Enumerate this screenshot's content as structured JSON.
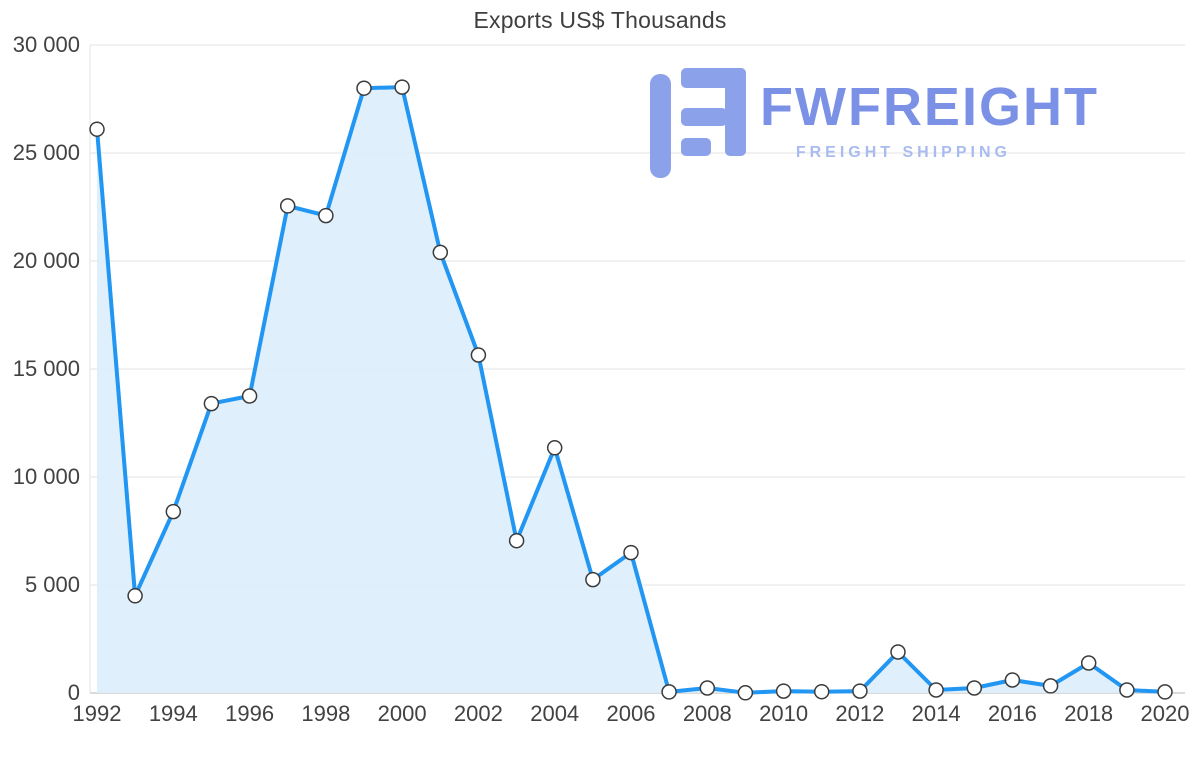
{
  "title": "Exports US$ Thousands",
  "logo": {
    "brand": "FWFREIGHT",
    "tagline": "FREIGHT SHIPPING",
    "icon_color": "#8ba1ea",
    "brand_color": "#7b91e6",
    "tagline_color": "#a9bbf0"
  },
  "chart_data": {
    "type": "area",
    "title": "Exports US$ Thousands",
    "xlabel": "",
    "ylabel": "",
    "x": [
      1992,
      1993,
      1994,
      1995,
      1996,
      1997,
      1998,
      1999,
      2000,
      2001,
      2002,
      2003,
      2004,
      2005,
      2006,
      2007,
      2008,
      2009,
      2010,
      2011,
      2012,
      2013,
      2014,
      2015,
      2016,
      2017,
      2018,
      2019,
      2020
    ],
    "series": [
      {
        "name": "Exports US$ Thousands",
        "values": [
          26100,
          4500,
          8400,
          13400,
          13750,
          22550,
          22100,
          28000,
          28050,
          20400,
          15650,
          7050,
          11350,
          5250,
          6500,
          50,
          230,
          10,
          90,
          60,
          90,
          1900,
          140,
          230,
          600,
          330,
          1390,
          140,
          50
        ]
      }
    ],
    "ylim": [
      0,
      30000
    ],
    "xlim": [
      1992,
      2020
    ],
    "yticks": [
      0,
      5000,
      10000,
      15000,
      20000,
      25000,
      30000
    ],
    "ytick_labels": [
      "0",
      "5 000",
      "10 000",
      "15 000",
      "20 000",
      "25 000",
      "30 000"
    ],
    "xticks": [
      1992,
      1994,
      1996,
      1998,
      2000,
      2002,
      2004,
      2006,
      2008,
      2010,
      2012,
      2014,
      2016,
      2018,
      2020
    ],
    "xtick_labels": [
      "1992",
      "1994",
      "1996",
      "1998",
      "2000",
      "2002",
      "2004",
      "2006",
      "2008",
      "2010",
      "2012",
      "2014",
      "2016",
      "2018",
      "2020"
    ],
    "grid": true,
    "legend": "none",
    "line_color": "#2196f3",
    "fill_color": "#dcedfb",
    "marker_fill": "#ffffff",
    "marker_stroke": "#3b3b3b",
    "grid_color": "#e3e3e3",
    "axis_line_color": "#b5b5b5",
    "axis_text_color": "#424242"
  }
}
